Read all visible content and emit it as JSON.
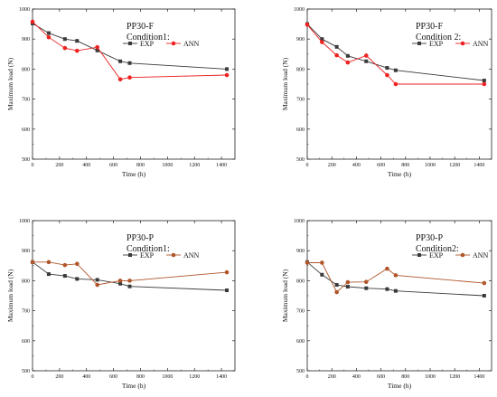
{
  "chart_data": [
    {
      "type": "line",
      "title": "PP30-F",
      "subtitle": "Condition1:",
      "xlabel": "Time (h)",
      "ylabel": "Maximum load (N)",
      "xlim": [
        0,
        1500
      ],
      "ylim": [
        500,
        1000
      ],
      "xticks": [
        "0",
        "200",
        "400",
        "600",
        "800",
        "1000",
        "1200",
        "1400"
      ],
      "yticks": [
        "500",
        "600",
        "700",
        "800",
        "900",
        "1000"
      ],
      "legend": "right",
      "series": [
        {
          "name": "EXP",
          "marker": "square",
          "color": "#3a3a3a",
          "x": [
            0,
            120,
            240,
            330,
            480,
            650,
            720,
            1440
          ],
          "y": [
            952,
            920,
            900,
            894,
            862,
            826,
            820,
            800
          ]
        },
        {
          "name": "ANN",
          "marker": "circle",
          "color": "#ee2222",
          "x": [
            0,
            120,
            240,
            330,
            480,
            650,
            720,
            1440
          ],
          "y": [
            958,
            906,
            870,
            861,
            873,
            766,
            772,
            780
          ]
        }
      ]
    },
    {
      "type": "line",
      "title": "PP30-F",
      "subtitle": "Condition 2:",
      "xlabel": "Time (h)",
      "ylabel": "Maximum load (N)",
      "xlim": [
        0,
        1500
      ],
      "ylim": [
        500,
        1000
      ],
      "xticks": [
        "0",
        "200",
        "400",
        "600",
        "800",
        "1000",
        "1200",
        "1400"
      ],
      "yticks": [
        "500",
        "600",
        "700",
        "800",
        "900",
        "1000"
      ],
      "legend": "right",
      "series": [
        {
          "name": "EXP",
          "marker": "square",
          "color": "#3a3a3a",
          "x": [
            0,
            120,
            240,
            330,
            480,
            650,
            720,
            1440
          ],
          "y": [
            950,
            900,
            874,
            844,
            826,
            804,
            796,
            762
          ]
        },
        {
          "name": "ANN",
          "marker": "circle",
          "color": "#ee2222",
          "x": [
            0,
            120,
            240,
            330,
            480,
            650,
            720,
            1440
          ],
          "y": [
            948,
            890,
            846,
            822,
            845,
            780,
            750,
            750
          ]
        }
      ]
    },
    {
      "type": "line",
      "title": "PP30-P",
      "subtitle": "Condition1:",
      "xlabel": "Time (h)",
      "ylabel": "Maximum load (N)",
      "xlim": [
        0,
        1500
      ],
      "ylim": [
        500,
        1000
      ],
      "xticks": [
        "0",
        "200",
        "400",
        "600",
        "800",
        "1000",
        "1200",
        "1400"
      ],
      "yticks": [
        "500",
        "600",
        "700",
        "800",
        "900",
        "1000"
      ],
      "legend": "right",
      "series": [
        {
          "name": "EXP",
          "marker": "square",
          "color": "#3a3a3a",
          "x": [
            0,
            120,
            240,
            330,
            480,
            650,
            720,
            1440
          ],
          "y": [
            862,
            822,
            816,
            806,
            803,
            790,
            781,
            768
          ]
        },
        {
          "name": "ANN",
          "marker": "circle",
          "color": "#b0562a",
          "x": [
            0,
            120,
            240,
            330,
            480,
            650,
            720,
            1440
          ],
          "y": [
            862,
            862,
            852,
            856,
            786,
            800,
            800,
            828
          ]
        }
      ]
    },
    {
      "type": "line",
      "title": "PP30-P",
      "subtitle": "Condition2:",
      "xlabel": "Time (h)",
      "ylabel": "Maximum load (N)",
      "xlim": [
        0,
        1500
      ],
      "ylim": [
        500,
        1000
      ],
      "xticks": [
        "0",
        "200",
        "400",
        "600",
        "800",
        "1000",
        "1200",
        "1400"
      ],
      "yticks": [
        "500",
        "600",
        "700",
        "800",
        "900",
        "1000"
      ],
      "legend": "right",
      "series": [
        {
          "name": "EXP",
          "marker": "square",
          "color": "#3a3a3a",
          "x": [
            0,
            120,
            240,
            330,
            480,
            650,
            720,
            1440
          ],
          "y": [
            862,
            820,
            786,
            780,
            775,
            772,
            766,
            750
          ]
        },
        {
          "name": "ANN",
          "marker": "circle",
          "color": "#b0562a",
          "x": [
            0,
            120,
            240,
            330,
            480,
            650,
            720,
            1440
          ],
          "y": [
            860,
            860,
            762,
            795,
            796,
            840,
            818,
            792
          ]
        }
      ]
    }
  ]
}
